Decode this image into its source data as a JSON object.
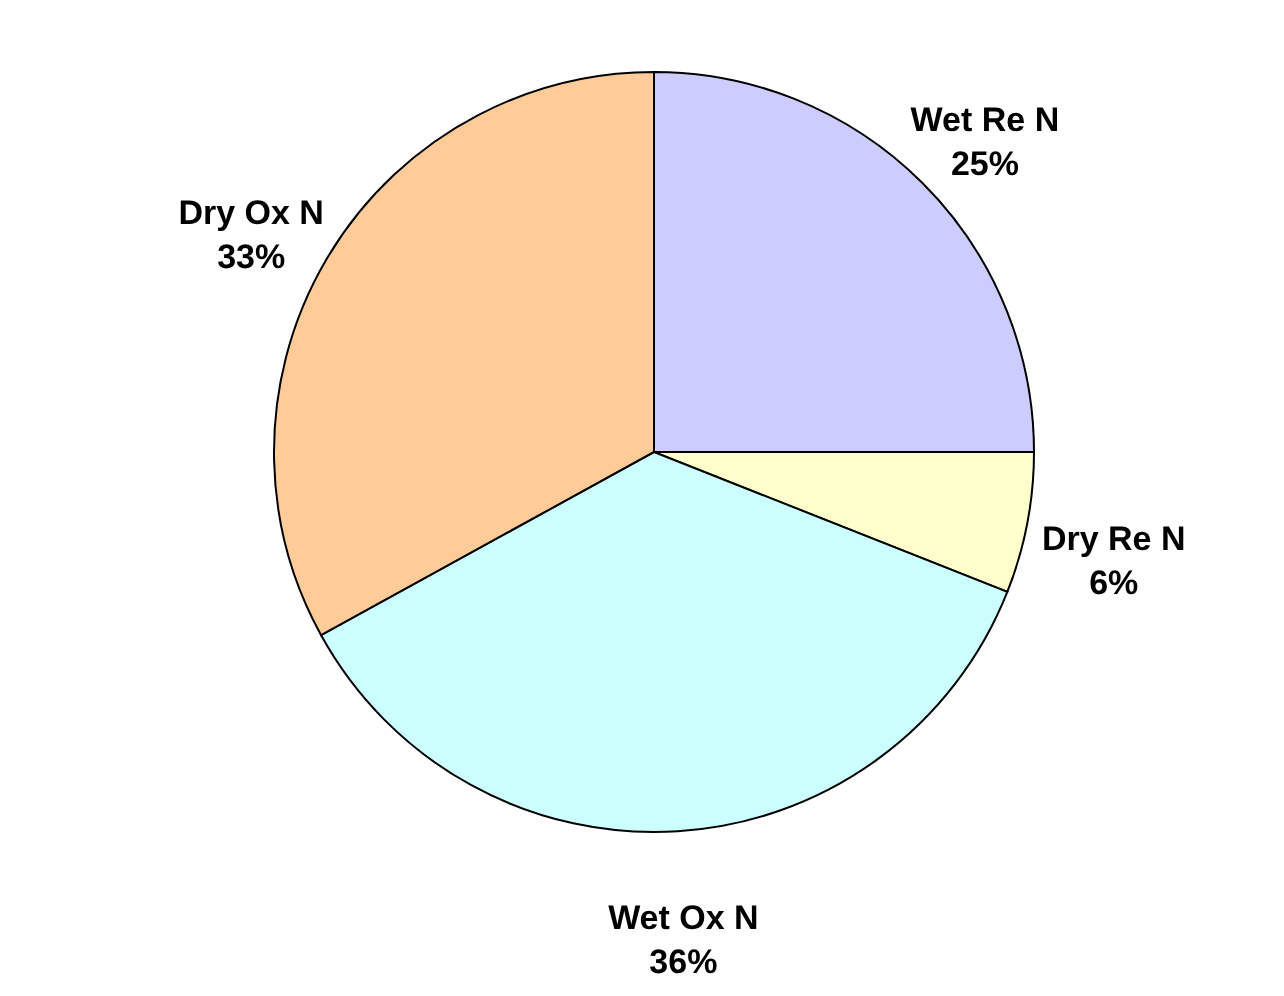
{
  "chart_data": {
    "type": "pie",
    "categories": [
      "Wet Re N",
      "Dry Re N",
      "Wet Ox N",
      "Dry Ox N"
    ],
    "values": [
      25,
      6,
      36,
      33
    ],
    "value_labels": [
      "25%",
      "6%",
      "36%",
      "33%"
    ],
    "colors": [
      "#ccccff",
      "#ffffcc",
      "#ccffff",
      "#ffcc99"
    ]
  }
}
